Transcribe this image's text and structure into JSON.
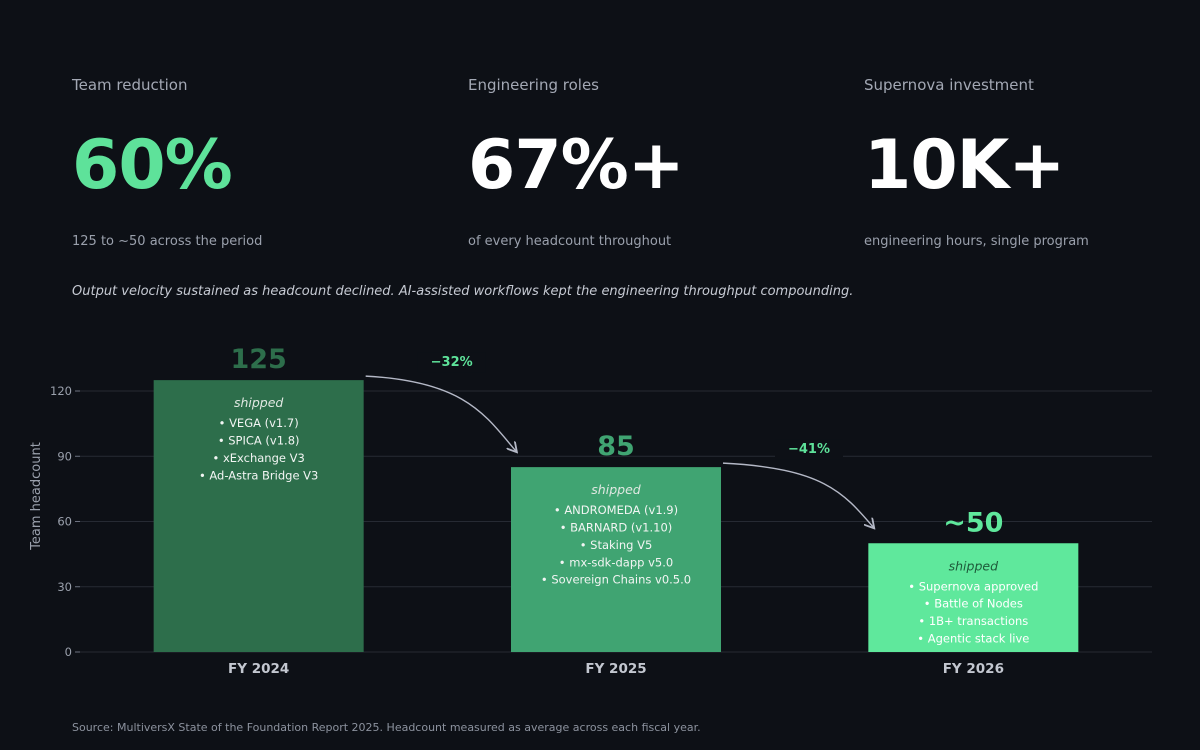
{
  "stats": [
    {
      "label": "Team reduction",
      "value": "60%",
      "sub": "125 to ~50 across the period"
    },
    {
      "label": "Engineering roles",
      "value": "67%+",
      "sub": "of every headcount throughout"
    },
    {
      "label": "Supernova investment",
      "value": "10K+",
      "sub": "engineering hours, single program"
    }
  ],
  "tagline": "Output velocity sustained as headcount declined. AI-assisted workflows kept the engineering throughput compounding.",
  "source": "Source: MultiversX State of the Foundation Report 2025. Headcount measured as average across each fiscal year.",
  "colors": {
    "accent": "#5ee29a",
    "bar_2024": "#2d6e4b",
    "bar_2025": "#40a472",
    "bar_2026": "#5fe89c"
  },
  "chart_data": {
    "type": "bar",
    "ylabel": "Team headcount",
    "ylim": [
      0,
      130
    ],
    "yticks": [
      0,
      30,
      60,
      90,
      120
    ],
    "grid": true,
    "categories": [
      "FY 2024",
      "FY 2025",
      "FY 2026"
    ],
    "values": [
      125,
      85,
      50
    ],
    "value_labels": [
      "125",
      "85",
      "~50"
    ],
    "inner_label": "shipped",
    "bar_items": [
      [
        "• VEGA (v1.7)",
        "• SPICA (v1.8)",
        "• xExchange V3",
        "• Ad-Astra Bridge V3"
      ],
      [
        "• ANDROMEDA (v1.9)",
        "• BARNARD (v1.10)",
        "• Staking V5",
        "• mx-sdk-dapp v5.0",
        "• Sovereign Chains v0.5.0"
      ],
      [
        "• Supernova approved",
        "• Battle of Nodes",
        "• 1B+ transactions",
        "• Agentic stack live"
      ]
    ],
    "changes": [
      "−32%",
      "−41%"
    ]
  }
}
